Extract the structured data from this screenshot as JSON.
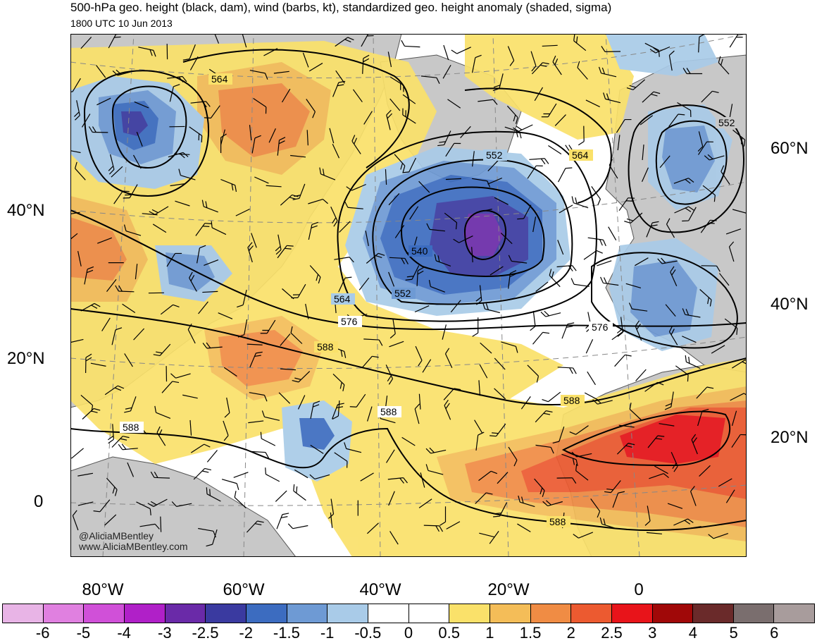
{
  "title": "500-hPa geo. height (black, dam), wind (barbs, kt), standardized geo. height anomaly (shaded, sigma)",
  "subtitle": "1800 UTC 10 Jun 2013",
  "credit": {
    "handle": "@AliciaMBentley",
    "site": "www.AliciaMBentley.com"
  },
  "lat_labels_left": [
    "40°N",
    "20°N",
    "0"
  ],
  "lat_labels_right": [
    "60°N",
    "40°N",
    "20°N"
  ],
  "lon_labels": [
    "80°W",
    "60°W",
    "40°W",
    "20°W",
    "0"
  ],
  "contour_labels": [
    "564",
    "552",
    "564",
    "552",
    "540",
    "564",
    "552",
    "576",
    "576",
    "588",
    "588",
    "588",
    "588",
    "588"
  ],
  "colorbar": {
    "colors": [
      "#e8b4e6",
      "#e080e0",
      "#d050d8",
      "#b020c8",
      "#6a2aa8",
      "#3a3aa0",
      "#3c6cc0",
      "#6e9ad4",
      "#a9cbe8",
      "#ffffff",
      "#ffffff",
      "#fae16a",
      "#f4bd58",
      "#f08c44",
      "#ec5a30",
      "#e8141a",
      "#a00808",
      "#6a2a2a",
      "#7a6e6e",
      "#a89c9c"
    ],
    "labels": [
      "-6",
      "-5",
      "-4",
      "-3",
      "-2.5",
      "-2",
      "-1.5",
      "-1",
      "-0.5",
      "0",
      "0.5",
      "1",
      "1.5",
      "2",
      "2.5",
      "3",
      "4",
      "5",
      "6"
    ]
  },
  "colors": {
    "land": "#c8c8c8",
    "ocean": "#ffffff",
    "contour": "#000000"
  }
}
